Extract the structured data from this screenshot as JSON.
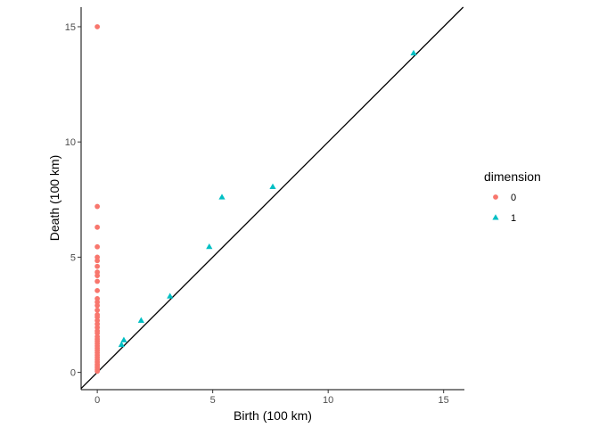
{
  "chart_data": {
    "type": "scatter",
    "xlabel": "Birth (100 km)",
    "ylabel": "Death (100 km)",
    "xlim": [
      -0.7,
      15.9
    ],
    "ylim": [
      -0.75,
      15.85
    ],
    "x_ticks": [
      0,
      5,
      10,
      15
    ],
    "y_ticks": [
      0,
      5,
      10,
      15
    ],
    "grid": false,
    "diagonal": true,
    "legend": {
      "title": "dimension",
      "placement": "right",
      "entries": [
        {
          "label": "0",
          "shape": "circle",
          "color": "#F8766D"
        },
        {
          "label": "1",
          "shape": "triangle",
          "color": "#00BFC4"
        }
      ]
    },
    "series": [
      {
        "name": "0",
        "color": "#F8766D",
        "shape": "circle",
        "points": [
          [
            0,
            15.0
          ],
          [
            0,
            7.2
          ],
          [
            0,
            6.3
          ],
          [
            0,
            5.45
          ],
          [
            0,
            5.0
          ],
          [
            0,
            4.85
          ],
          [
            0,
            4.6
          ],
          [
            0,
            4.35
          ],
          [
            0,
            4.2
          ],
          [
            0,
            3.95
          ],
          [
            0,
            3.55
          ],
          [
            0,
            3.2
          ],
          [
            0,
            3.05
          ],
          [
            0,
            2.9
          ],
          [
            0,
            2.7
          ],
          [
            0,
            2.5
          ],
          [
            0,
            2.4
          ],
          [
            0,
            2.25
          ],
          [
            0,
            2.1
          ],
          [
            0,
            1.95
          ],
          [
            0,
            1.8
          ],
          [
            0,
            1.7
          ],
          [
            0,
            1.55
          ],
          [
            0,
            1.45
          ],
          [
            0,
            1.35
          ],
          [
            0,
            1.25
          ],
          [
            0,
            1.15
          ],
          [
            0,
            1.05
          ],
          [
            0,
            0.95
          ],
          [
            0,
            0.85
          ],
          [
            0,
            0.75
          ],
          [
            0,
            0.65
          ],
          [
            0,
            0.55
          ],
          [
            0,
            0.45
          ],
          [
            0,
            0.35
          ],
          [
            0,
            0.28
          ],
          [
            0,
            0.2
          ],
          [
            0,
            0.12
          ],
          [
            0,
            0.05
          ]
        ]
      },
      {
        "name": "1",
        "color": "#00BFC4",
        "shape": "triangle",
        "points": [
          [
            13.7,
            13.85
          ],
          [
            7.6,
            8.05
          ],
          [
            5.4,
            7.6
          ],
          [
            4.85,
            5.45
          ],
          [
            3.15,
            3.3
          ],
          [
            1.9,
            2.25
          ],
          [
            1.15,
            1.4
          ],
          [
            1.05,
            1.2
          ]
        ]
      }
    ]
  }
}
